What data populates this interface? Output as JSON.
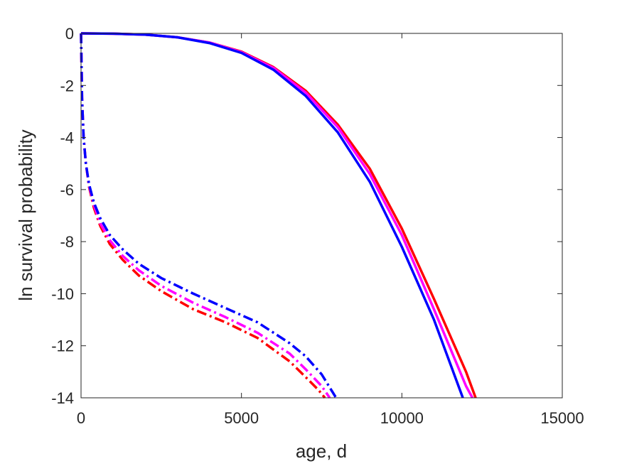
{
  "chart_data": {
    "type": "line",
    "title": "",
    "xlabel": "age, d",
    "ylabel": "ln survival probability",
    "xlim": [
      0,
      15000
    ],
    "ylim": [
      -14,
      0
    ],
    "xticks": [
      0,
      5000,
      10000,
      15000
    ],
    "yticks": [
      0,
      -2,
      -4,
      -6,
      -8,
      -10,
      -12,
      -14
    ],
    "x_tick_labels": [
      "0",
      "5000",
      "10000",
      "15000"
    ],
    "y_tick_labels": [
      "0",
      "-2",
      "-4",
      "-6",
      "-8",
      "-10",
      "-12",
      "-14"
    ],
    "grid": false,
    "legend": "none",
    "series": [
      {
        "color": "#ff0000",
        "style": "solid",
        "x": [
          0,
          1000,
          2000,
          3000,
          4000,
          5000,
          6000,
          7000,
          8000,
          9000,
          10000,
          11000,
          12000,
          12300
        ],
        "y": [
          0,
          -0.01,
          -0.05,
          -0.15,
          -0.35,
          -0.7,
          -1.3,
          -2.2,
          -3.5,
          -5.2,
          -7.5,
          -10.2,
          -13.0,
          -14.0
        ]
      },
      {
        "color": "#ff00ff",
        "style": "solid",
        "x": [
          0,
          1000,
          2000,
          3000,
          4000,
          5000,
          6000,
          7000,
          8000,
          9000,
          10000,
          11000,
          12000,
          12200
        ],
        "y": [
          0,
          -0.01,
          -0.05,
          -0.15,
          -0.35,
          -0.72,
          -1.33,
          -2.27,
          -3.6,
          -5.4,
          -7.75,
          -10.6,
          -13.55,
          -14.0
        ]
      },
      {
        "color": "#0000ff",
        "style": "solid",
        "x": [
          0,
          1000,
          2000,
          3000,
          4000,
          5000,
          6000,
          7000,
          8000,
          9000,
          10000,
          11000,
          11900
        ],
        "y": [
          0,
          -0.01,
          -0.05,
          -0.15,
          -0.37,
          -0.75,
          -1.4,
          -2.4,
          -3.8,
          -5.7,
          -8.2,
          -11.0,
          -14.0
        ]
      },
      {
        "color": "#ff0000",
        "style": "dashdot",
        "x": [
          0,
          30,
          80,
          150,
          250,
          400,
          600,
          900,
          1300,
          1800,
          2500,
          3500,
          4500,
          5500,
          6500,
          7000,
          7400,
          7600
        ],
        "y": [
          0,
          -2.5,
          -4.0,
          -5.0,
          -5.9,
          -6.7,
          -7.4,
          -8.1,
          -8.7,
          -9.3,
          -9.9,
          -10.6,
          -11.1,
          -11.7,
          -12.6,
          -13.2,
          -13.7,
          -14.0
        ]
      },
      {
        "color": "#ff00ff",
        "style": "dashdot",
        "x": [
          0,
          30,
          80,
          150,
          250,
          400,
          600,
          900,
          1300,
          1800,
          2500,
          3500,
          4500,
          5500,
          6500,
          7000,
          7500,
          7750
        ],
        "y": [
          0,
          -2.5,
          -4.0,
          -5.0,
          -5.85,
          -6.6,
          -7.3,
          -7.95,
          -8.55,
          -9.1,
          -9.7,
          -10.35,
          -10.9,
          -11.5,
          -12.3,
          -12.9,
          -13.55,
          -14.0
        ]
      },
      {
        "color": "#0000ff",
        "style": "dashdot",
        "x": [
          0,
          30,
          80,
          150,
          250,
          400,
          600,
          900,
          1300,
          1800,
          2500,
          3500,
          4500,
          5500,
          6500,
          7000,
          7500,
          7950
        ],
        "y": [
          0,
          -2.5,
          -4.0,
          -5.0,
          -5.8,
          -6.5,
          -7.1,
          -7.75,
          -8.3,
          -8.85,
          -9.4,
          -10.0,
          -10.55,
          -11.1,
          -11.9,
          -12.4,
          -13.1,
          -14.0
        ]
      }
    ]
  }
}
